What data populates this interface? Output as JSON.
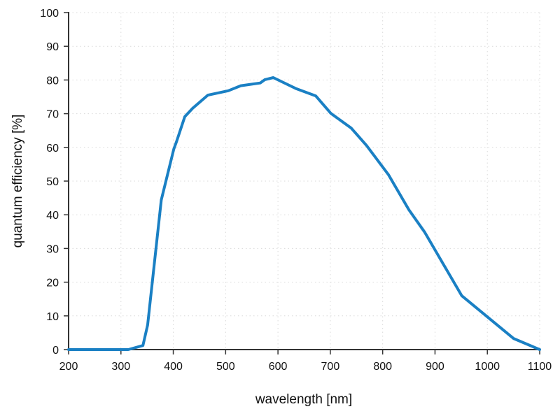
{
  "chart_data": {
    "type": "line",
    "title": "",
    "xlabel": "wavelength [nm]",
    "ylabel": "quantum efficiency [%]",
    "xlim": [
      200,
      1100
    ],
    "ylim": [
      0,
      100
    ],
    "xticks": [
      200,
      300,
      400,
      500,
      600,
      700,
      800,
      900,
      1000,
      1100
    ],
    "yticks": [
      0,
      10,
      20,
      30,
      40,
      50,
      60,
      70,
      80,
      90,
      100
    ],
    "xtick_labels": [
      "200",
      "300",
      "400",
      "500",
      "600",
      "700",
      "800",
      "900",
      "1000",
      "1100"
    ],
    "ytick_labels": [
      "0",
      "10",
      "20",
      "30",
      "40",
      "50",
      "60",
      "70",
      "80",
      "90",
      "100"
    ],
    "grid": true,
    "legend": "none",
    "series": [
      {
        "name": "quantum efficiency",
        "color": "#1a80c4",
        "x": [
          200,
          314,
          342,
          351,
          377,
          401,
          406,
          422,
          437,
          466,
          505,
          529,
          566,
          575,
          591,
          635,
          672,
          701,
          740,
          769,
          811,
          850,
          880,
          951,
          1050,
          1100
        ],
        "y": [
          0,
          0,
          1.2,
          7.3,
          44.4,
          59.5,
          61.6,
          69.1,
          71.6,
          75.5,
          76.8,
          78.3,
          79.1,
          80.1,
          80.7,
          77.4,
          75.3,
          70.1,
          65.7,
          60.6,
          51.9,
          41.5,
          34.9,
          16.0,
          3.3,
          0
        ]
      }
    ],
    "colors": {
      "axis": "#333333",
      "grid": "#d9d9d9",
      "text": "#111111"
    }
  }
}
